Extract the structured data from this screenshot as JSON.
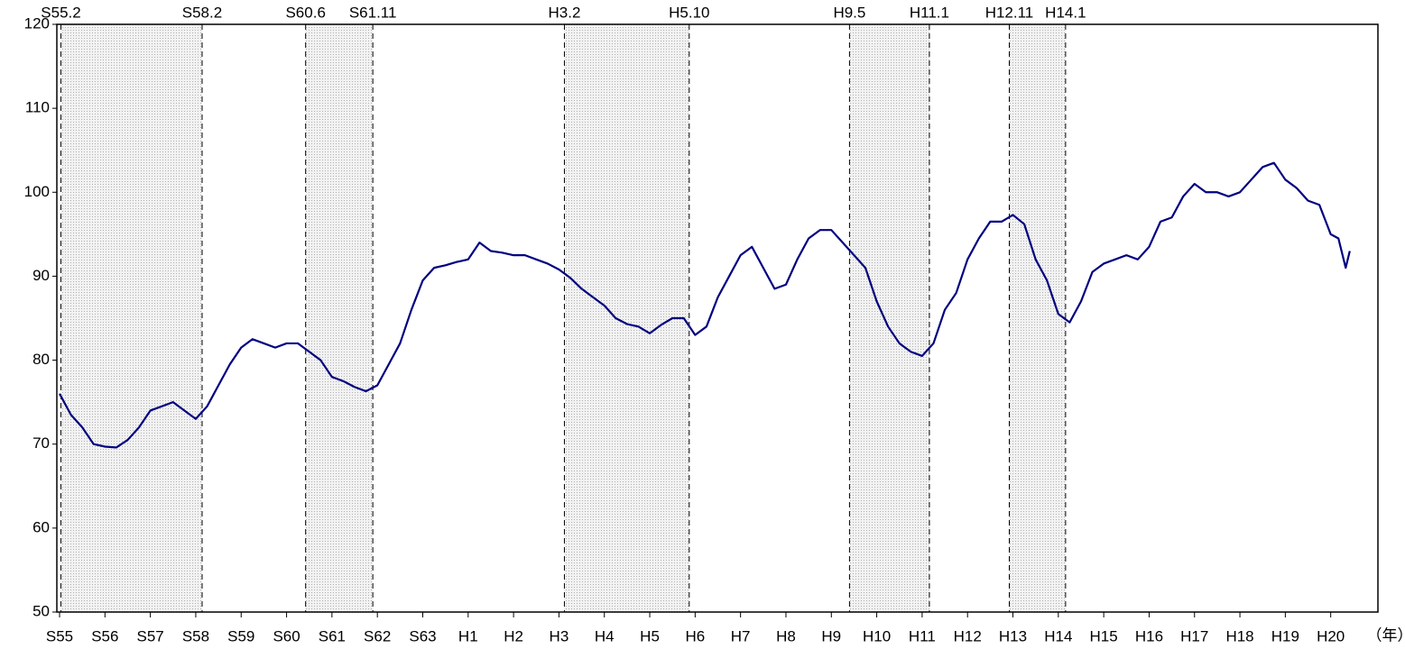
{
  "chart_data": {
    "type": "line",
    "x_label": "（年）",
    "x": [
      0,
      0.25,
      0.5,
      0.75,
      1,
      1.25,
      1.5,
      1.75,
      2,
      2.25,
      2.5,
      2.75,
      3,
      3.25,
      3.5,
      3.75,
      4,
      4.25,
      4.5,
      4.75,
      5,
      5.25,
      5.5,
      5.75,
      6,
      6.25,
      6.5,
      6.75,
      7,
      7.25,
      7.5,
      7.75,
      8,
      8.25,
      8.5,
      8.75,
      9,
      9.25,
      9.5,
      9.75,
      10,
      10.25,
      10.5,
      10.75,
      11,
      11.25,
      11.5,
      11.75,
      12,
      12.25,
      12.5,
      12.75,
      13,
      13.25,
      13.5,
      13.75,
      14,
      14.25,
      14.5,
      14.75,
      15,
      15.25,
      15.5,
      15.75,
      16,
      16.25,
      16.5,
      16.75,
      17,
      17.25,
      17.5,
      17.75,
      18,
      18.25,
      18.5,
      18.75,
      19,
      19.25,
      19.5,
      19.75,
      20,
      20.25,
      20.5,
      20.75,
      21,
      21.25,
      21.5,
      21.75,
      22,
      22.25,
      22.5,
      22.75,
      23,
      23.25,
      23.5,
      23.75,
      24,
      24.25,
      24.5,
      24.75,
      25,
      25.25,
      25.5,
      25.75,
      26,
      26.25,
      26.5,
      26.75,
      27,
      27.25,
      27.5,
      27.75,
      28,
      28.17,
      28.33,
      28.42
    ],
    "series": [
      {
        "color": "#000080",
        "values": [
          76,
          73.5,
          72,
          70,
          69.7,
          69.6,
          70.5,
          72,
          74,
          74.5,
          75,
          74,
          73,
          74.5,
          77,
          79.5,
          81.5,
          82.5,
          82,
          81.5,
          82,
          82,
          81,
          80,
          78,
          77.5,
          76.8,
          76.3,
          77,
          79.5,
          82,
          86,
          89.5,
          91,
          91.3,
          91.7,
          92,
          94,
          93,
          92.8,
          92.5,
          92.5,
          92,
          91.5,
          90.8,
          89.8,
          88.5,
          87.5,
          86.5,
          85,
          84.3,
          84,
          83.2,
          84.2,
          85,
          85,
          83,
          84,
          87.5,
          90,
          92.5,
          93.5,
          91,
          88.5,
          89,
          92,
          94.5,
          95.5,
          95.5,
          94,
          92.5,
          91,
          87,
          84,
          82,
          81,
          80.5,
          82,
          86,
          88,
          92,
          94.5,
          96.5,
          96.5,
          97.3,
          96.2,
          92,
          89.5,
          85.5,
          84.5,
          87,
          90.5,
          91.5,
          92,
          92.5,
          92,
          93.5,
          96.5,
          97,
          99.5,
          101,
          100,
          100,
          99.5,
          100,
          101.5,
          103,
          103.5,
          101.5,
          100.5,
          99,
          98.5,
          95,
          94.5,
          91,
          93
        ]
      }
    ],
    "xlim": [
      -0.06,
      29.04
    ],
    "xticks": [
      {
        "value": 0,
        "label": "S55"
      },
      {
        "value": 1,
        "label": "S56"
      },
      {
        "value": 2,
        "label": "S57"
      },
      {
        "value": 3,
        "label": "S58"
      },
      {
        "value": 4,
        "label": "S59"
      },
      {
        "value": 5,
        "label": "S60"
      },
      {
        "value": 6,
        "label": "S61"
      },
      {
        "value": 7,
        "label": "S62"
      },
      {
        "value": 8,
        "label": "S63"
      },
      {
        "value": 9,
        "label": "H1"
      },
      {
        "value": 10,
        "label": "H2"
      },
      {
        "value": 11,
        "label": "H3"
      },
      {
        "value": 12,
        "label": "H4"
      },
      {
        "value": 13,
        "label": "H5"
      },
      {
        "value": 14,
        "label": "H6"
      },
      {
        "value": 15,
        "label": "H7"
      },
      {
        "value": 16,
        "label": "H8"
      },
      {
        "value": 17,
        "label": "H9"
      },
      {
        "value": 18,
        "label": "H10"
      },
      {
        "value": 19,
        "label": "H11"
      },
      {
        "value": 20,
        "label": "H12"
      },
      {
        "value": 21,
        "label": "H13"
      },
      {
        "value": 22,
        "label": "H14"
      },
      {
        "value": 23,
        "label": "H15"
      },
      {
        "value": 24,
        "label": "H16"
      },
      {
        "value": 25,
        "label": "H17"
      },
      {
        "value": 26,
        "label": "H18"
      },
      {
        "value": 27,
        "label": "H19"
      },
      {
        "value": 28,
        "label": "H20"
      }
    ],
    "ylim": [
      50,
      120
    ],
    "yticks": [
      50,
      60,
      70,
      80,
      90,
      100,
      110,
      120
    ],
    "bands": [
      {
        "start": {
          "value": 0.03,
          "label": "S55.2"
        },
        "end": {
          "value": 3.14,
          "label": "S58.2"
        }
      },
      {
        "start": {
          "value": 5.42,
          "label": "S60.6"
        },
        "end": {
          "value": 6.9,
          "label": "S61.11"
        }
      },
      {
        "start": {
          "value": 11.12,
          "label": "H3.2"
        },
        "end": {
          "value": 13.87,
          "label": "H5.10"
        }
      },
      {
        "start": {
          "value": 17.4,
          "label": "H9.5"
        },
        "end": {
          "value": 19.16,
          "label": "H11.1"
        }
      },
      {
        "start": {
          "value": 20.92,
          "label": "H12.11"
        },
        "end": {
          "value": 22.16,
          "label": "H14.1"
        }
      }
    ]
  }
}
